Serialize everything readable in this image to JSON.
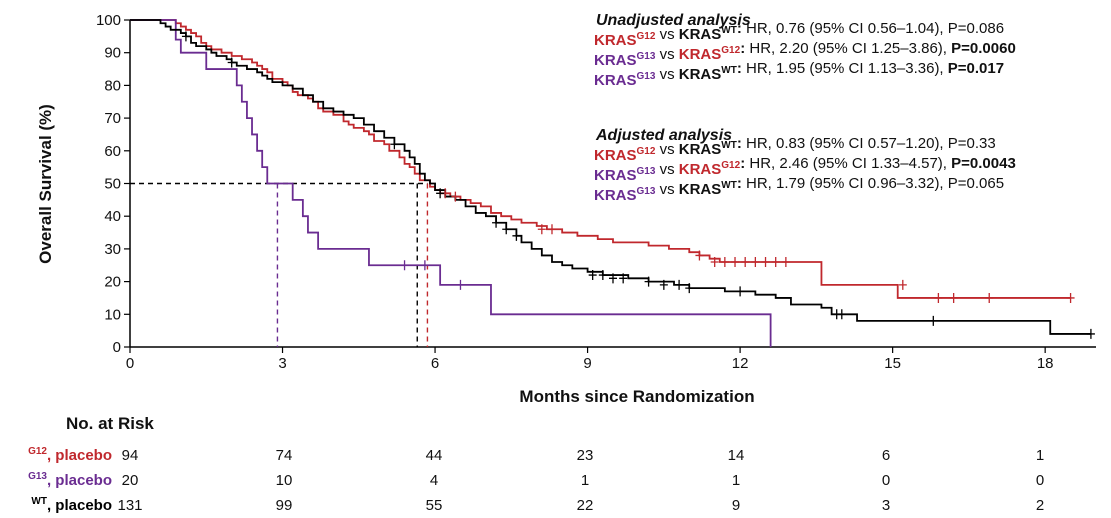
{
  "chart_data": {
    "type": "line",
    "subtype": "kaplan-meier",
    "xlabel": "Months since Randomization",
    "ylabel": "Overall Survival (%)",
    "xlim": [
      0,
      19
    ],
    "ylim": [
      0,
      100
    ],
    "xticks": [
      0,
      3,
      6,
      9,
      12,
      15,
      18
    ],
    "yticks": [
      0,
      10,
      20,
      30,
      40,
      50,
      60,
      70,
      80,
      90,
      100
    ],
    "grid": false,
    "median_reference": {
      "y": 50,
      "medians": [
        {
          "series": "G13",
          "x": 2.9,
          "color": "#6a2c91"
        },
        {
          "series": "WT",
          "x": 5.65,
          "color": "#000000"
        },
        {
          "series": "G12",
          "x": 5.85,
          "color": "#c0282d"
        }
      ]
    },
    "series": [
      {
        "key": "G12",
        "color": "#c0282d",
        "steps": [
          [
            0,
            100
          ],
          [
            0.8,
            100
          ],
          [
            0.9,
            99
          ],
          [
            1.0,
            98
          ],
          [
            1.1,
            97
          ],
          [
            1.2,
            96
          ],
          [
            1.3,
            95
          ],
          [
            1.4,
            93
          ],
          [
            1.5,
            92
          ],
          [
            1.6,
            91
          ],
          [
            1.8,
            90
          ],
          [
            2.0,
            89
          ],
          [
            2.2,
            88
          ],
          [
            2.4,
            87
          ],
          [
            2.5,
            86
          ],
          [
            2.6,
            85
          ],
          [
            2.7,
            84
          ],
          [
            2.8,
            82
          ],
          [
            3.0,
            81
          ],
          [
            3.1,
            80
          ],
          [
            3.2,
            78
          ],
          [
            3.3,
            77
          ],
          [
            3.5,
            76
          ],
          [
            3.6,
            75
          ],
          [
            3.7,
            73
          ],
          [
            3.8,
            72
          ],
          [
            4.0,
            71
          ],
          [
            4.2,
            69
          ],
          [
            4.3,
            68
          ],
          [
            4.4,
            67
          ],
          [
            4.6,
            66
          ],
          [
            4.7,
            65
          ],
          [
            4.8,
            63
          ],
          [
            5.0,
            62
          ],
          [
            5.1,
            60
          ],
          [
            5.3,
            58
          ],
          [
            5.4,
            56
          ],
          [
            5.5,
            55
          ],
          [
            5.6,
            53
          ],
          [
            5.7,
            51
          ],
          [
            5.9,
            49
          ],
          [
            6.0,
            48
          ],
          [
            6.1,
            47
          ],
          [
            6.3,
            46
          ],
          [
            6.5,
            45
          ],
          [
            6.7,
            44
          ],
          [
            6.9,
            43
          ],
          [
            7.1,
            41
          ],
          [
            7.3,
            40
          ],
          [
            7.5,
            39
          ],
          [
            7.7,
            38
          ],
          [
            8.0,
            37
          ],
          [
            8.2,
            36
          ],
          [
            8.5,
            35
          ],
          [
            8.8,
            34
          ],
          [
            9.2,
            33
          ],
          [
            9.5,
            32
          ],
          [
            10.2,
            31
          ],
          [
            10.6,
            30
          ],
          [
            11.0,
            29
          ],
          [
            11.2,
            28
          ],
          [
            11.4,
            27
          ],
          [
            11.6,
            26
          ],
          [
            12.3,
            26
          ],
          [
            13.2,
            26
          ],
          [
            13.6,
            19
          ],
          [
            14.2,
            19
          ],
          [
            15.1,
            16
          ],
          [
            15.1,
            15
          ],
          [
            18.5,
            15
          ]
        ],
        "censors": [
          [
            6.2,
            47
          ],
          [
            6.4,
            46
          ],
          [
            8.1,
            36
          ],
          [
            8.3,
            36
          ],
          [
            11.2,
            28
          ],
          [
            11.5,
            26
          ],
          [
            11.7,
            26
          ],
          [
            11.9,
            26
          ],
          [
            12.1,
            26
          ],
          [
            12.3,
            26
          ],
          [
            12.5,
            26
          ],
          [
            12.7,
            26
          ],
          [
            12.9,
            26
          ],
          [
            15.2,
            19
          ],
          [
            15.9,
            15
          ],
          [
            16.2,
            15
          ],
          [
            16.9,
            15
          ],
          [
            18.5,
            15
          ]
        ]
      },
      {
        "key": "G13",
        "color": "#6a2c91",
        "steps": [
          [
            0,
            100
          ],
          [
            0.8,
            100
          ],
          [
            0.9,
            94
          ],
          [
            1.0,
            90
          ],
          [
            1.4,
            90
          ],
          [
            1.5,
            85
          ],
          [
            2.0,
            85
          ],
          [
            2.1,
            80
          ],
          [
            2.2,
            75
          ],
          [
            2.3,
            70
          ],
          [
            2.4,
            65
          ],
          [
            2.5,
            60
          ],
          [
            2.6,
            55
          ],
          [
            2.7,
            50
          ],
          [
            3.1,
            50
          ],
          [
            3.2,
            45
          ],
          [
            3.4,
            40
          ],
          [
            3.5,
            35
          ],
          [
            3.7,
            30
          ],
          [
            4.6,
            30
          ],
          [
            4.7,
            25
          ],
          [
            5.3,
            25
          ],
          [
            5.5,
            25
          ],
          [
            6.0,
            25
          ],
          [
            6.1,
            19
          ],
          [
            7.0,
            19
          ],
          [
            7.1,
            10
          ],
          [
            12.5,
            10
          ],
          [
            12.6,
            0
          ]
        ],
        "censors": [
          [
            5.4,
            25
          ],
          [
            5.8,
            25
          ],
          [
            6.5,
            19
          ]
        ]
      },
      {
        "key": "WT",
        "color": "#000000",
        "steps": [
          [
            0,
            100
          ],
          [
            0.5,
            100
          ],
          [
            0.6,
            99
          ],
          [
            0.7,
            98
          ],
          [
            0.8,
            97
          ],
          [
            1.0,
            96
          ],
          [
            1.1,
            95
          ],
          [
            1.2,
            93
          ],
          [
            1.3,
            92
          ],
          [
            1.5,
            91
          ],
          [
            1.6,
            90
          ],
          [
            1.7,
            89
          ],
          [
            1.9,
            88
          ],
          [
            2.0,
            87
          ],
          [
            2.1,
            86
          ],
          [
            2.3,
            85
          ],
          [
            2.5,
            84
          ],
          [
            2.6,
            83
          ],
          [
            2.7,
            82
          ],
          [
            2.8,
            81
          ],
          [
            3.0,
            80
          ],
          [
            3.2,
            79
          ],
          [
            3.4,
            77
          ],
          [
            3.6,
            75
          ],
          [
            3.8,
            73
          ],
          [
            4.0,
            72
          ],
          [
            4.2,
            71
          ],
          [
            4.4,
            70
          ],
          [
            4.6,
            68
          ],
          [
            4.8,
            66
          ],
          [
            5.0,
            64
          ],
          [
            5.2,
            62
          ],
          [
            5.4,
            60
          ],
          [
            5.5,
            58
          ],
          [
            5.6,
            56
          ],
          [
            5.7,
            53
          ],
          [
            5.8,
            51
          ],
          [
            5.9,
            50
          ],
          [
            6.0,
            48
          ],
          [
            6.2,
            46
          ],
          [
            6.4,
            45
          ],
          [
            6.6,
            43
          ],
          [
            6.8,
            41
          ],
          [
            7.0,
            40
          ],
          [
            7.2,
            38
          ],
          [
            7.4,
            36
          ],
          [
            7.6,
            34
          ],
          [
            7.7,
            32
          ],
          [
            7.9,
            30
          ],
          [
            8.1,
            28
          ],
          [
            8.3,
            26
          ],
          [
            8.5,
            25
          ],
          [
            8.7,
            24
          ],
          [
            9.0,
            23
          ],
          [
            9.3,
            22
          ],
          [
            9.8,
            21
          ],
          [
            10.2,
            20
          ],
          [
            10.7,
            19
          ],
          [
            11.0,
            18
          ],
          [
            11.7,
            17
          ],
          [
            12.3,
            16
          ],
          [
            12.7,
            15
          ],
          [
            13.0,
            13
          ],
          [
            13.6,
            12
          ],
          [
            13.8,
            10
          ],
          [
            14.2,
            10
          ],
          [
            14.3,
            8
          ],
          [
            15.2,
            8
          ],
          [
            18.0,
            8
          ],
          [
            18.1,
            4
          ],
          [
            18.9,
            4
          ]
        ],
        "censors": [
          [
            1.1,
            95
          ],
          [
            2.0,
            87
          ],
          [
            5.2,
            62
          ],
          [
            6.1,
            47
          ],
          [
            7.2,
            38
          ],
          [
            7.4,
            36
          ],
          [
            7.6,
            34
          ],
          [
            9.1,
            22
          ],
          [
            9.3,
            22
          ],
          [
            9.5,
            21
          ],
          [
            9.7,
            21
          ],
          [
            10.2,
            20
          ],
          [
            10.5,
            19
          ],
          [
            10.8,
            19
          ],
          [
            11.0,
            18
          ],
          [
            12.0,
            17
          ],
          [
            13.9,
            10
          ],
          [
            14.0,
            10
          ],
          [
            15.8,
            8
          ],
          [
            18.9,
            4
          ]
        ]
      }
    ]
  },
  "annotations": {
    "unadjusted": {
      "heading": "Unadjusted analysis",
      "lines": [
        [
          {
            "t": "KRAS",
            "c": "#c0282d",
            "b": true
          },
          {
            "t": "G12",
            "c": "#c0282d",
            "sup": true,
            "b": true
          },
          {
            "t": " vs "
          },
          {
            "t": "KRAS",
            "b": true
          },
          {
            "t": "WT",
            "sup": true,
            "b": true
          },
          {
            "t": ":",
            "b": true
          },
          {
            "t": " HR, 0.76 (95% CI 0.56–1.04), P=0.086"
          }
        ],
        [
          {
            "t": "KRAS",
            "c": "#6a2c91",
            "b": true
          },
          {
            "t": "G13",
            "c": "#6a2c91",
            "sup": true,
            "b": true
          },
          {
            "t": " vs "
          },
          {
            "t": "KRAS",
            "c": "#c0282d",
            "b": true
          },
          {
            "t": "G12",
            "c": "#c0282d",
            "sup": true,
            "b": true
          },
          {
            "t": ":",
            "b": true
          },
          {
            "t": " HR, 2.20 (95% CI 1.25–3.86), "
          },
          {
            "t": "P=0.0060",
            "b": true
          }
        ],
        [
          {
            "t": "KRAS",
            "c": "#6a2c91",
            "b": true
          },
          {
            "t": "G13",
            "c": "#6a2c91",
            "sup": true,
            "b": true
          },
          {
            "t": " vs "
          },
          {
            "t": "KRAS",
            "b": true
          },
          {
            "t": "WT",
            "sup": true,
            "b": true
          },
          {
            "t": ":",
            "b": true
          },
          {
            "t": " HR, 1.95 (95% CI 1.13–3.36), "
          },
          {
            "t": "P=0.017",
            "b": true
          }
        ]
      ]
    },
    "adjusted": {
      "heading": "Adjusted analysis",
      "lines": [
        [
          {
            "t": "KRAS",
            "c": "#c0282d",
            "b": true
          },
          {
            "t": "G12",
            "c": "#c0282d",
            "sup": true,
            "b": true
          },
          {
            "t": " vs "
          },
          {
            "t": "KRAS",
            "b": true
          },
          {
            "t": "WT",
            "sup": true,
            "b": true
          },
          {
            "t": ":",
            "b": true
          },
          {
            "t": " HR, 0.83 (95% CI 0.57–1.20), P=0.33"
          }
        ],
        [
          {
            "t": "KRAS",
            "c": "#6a2c91",
            "b": true
          },
          {
            "t": "G13",
            "c": "#6a2c91",
            "sup": true,
            "b": true
          },
          {
            "t": " vs "
          },
          {
            "t": "KRAS",
            "c": "#c0282d",
            "b": true
          },
          {
            "t": "G12",
            "c": "#c0282d",
            "sup": true,
            "b": true
          },
          {
            "t": ":",
            "b": true
          },
          {
            "t": " HR, 2.46 (95% CI 1.33–4.57), "
          },
          {
            "t": "P=0.0043",
            "b": true
          }
        ],
        [
          {
            "t": "KRAS",
            "c": "#6a2c91",
            "b": true
          },
          {
            "t": "G13",
            "c": "#6a2c91",
            "sup": true,
            "b": true
          },
          {
            "t": " vs "
          },
          {
            "t": "KRAS",
            "b": true
          },
          {
            "t": "WT",
            "sup": true,
            "b": true
          },
          {
            "t": ":",
            "b": true
          },
          {
            "t": " HR, 1.79 (95% CI 0.96–3.32), P=0.065"
          }
        ]
      ]
    }
  },
  "risk_table": {
    "title": "No. at Risk",
    "times": [
      0,
      3,
      6,
      9,
      12,
      15,
      18
    ],
    "rows": [
      {
        "label_sup": "G12",
        "label_rest": ", placebo",
        "color": "#c0282d",
        "counts": [
          94,
          74,
          44,
          23,
          14,
          6,
          1
        ]
      },
      {
        "label_sup": "G13",
        "label_rest": ", placebo",
        "color": "#6a2c91",
        "counts": [
          20,
          10,
          4,
          1,
          1,
          0,
          0
        ]
      },
      {
        "label_sup": "WT",
        "label_rest": ", placebo",
        "color": "#000000",
        "counts": [
          131,
          99,
          55,
          22,
          9,
          3,
          2
        ]
      }
    ]
  }
}
